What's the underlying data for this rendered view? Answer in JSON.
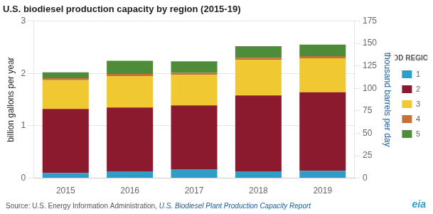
{
  "chart_data": {
    "type": "bar",
    "title": "U.S. biodiesel production capacity by region (2015-19)",
    "ylabel": "billion gallons per year",
    "y2label": "thousand barrels per day",
    "categories": [
      "2015",
      "2016",
      "2017",
      "2018",
      "2019"
    ],
    "stacked": true,
    "series": [
      {
        "name": "1",
        "color": "#2e9ec9",
        "values": [
          0.1,
          0.13,
          0.17,
          0.13,
          0.14
        ]
      },
      {
        "name": "2",
        "color": "#8b1a2f",
        "values": [
          1.22,
          1.22,
          1.22,
          1.45,
          1.5
        ]
      },
      {
        "name": "3",
        "color": "#f0c832",
        "values": [
          0.55,
          0.6,
          0.58,
          0.68,
          0.65
        ]
      },
      {
        "name": "4",
        "color": "#c87137",
        "values": [
          0.04,
          0.04,
          0.04,
          0.04,
          0.04
        ]
      },
      {
        "name": "5",
        "color": "#4e8c3a",
        "values": [
          0.11,
          0.25,
          0.22,
          0.22,
          0.22
        ]
      }
    ],
    "ylim": [
      0,
      3
    ],
    "yticks": [
      0,
      1,
      2,
      3
    ],
    "y2lim": [
      0,
      175
    ],
    "y2ticks": [
      0,
      25,
      50,
      75,
      100,
      125,
      150,
      175
    ],
    "grid": true,
    "legend": "right",
    "annotations": [
      "Source: U.S. Energy Information Administration, ",
      "U.S. Biodiesel Plant Production Capacity Report",
      "PADD REGIONS",
      "eia"
    ]
  }
}
